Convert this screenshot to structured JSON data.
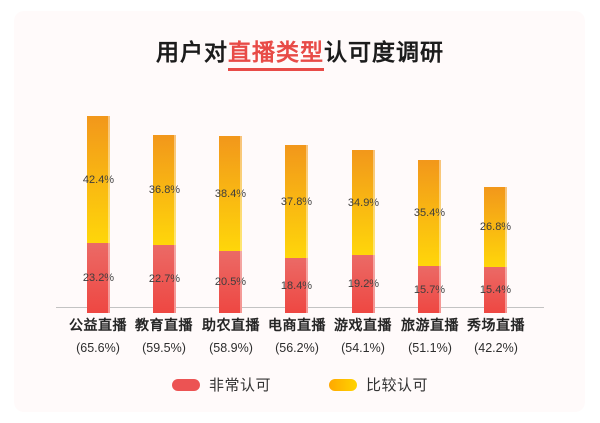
{
  "title": {
    "prefix": "用户对",
    "highlight": "直播类型",
    "suffix": "认可度调研",
    "highlight_color": "#E84B47"
  },
  "legend": [
    {
      "label": "非常认可",
      "swatch_color": "#EC5353"
    },
    {
      "label": "比较认可",
      "swatch_color_left": "#FFA800",
      "swatch_color_right": "#FFD400"
    }
  ],
  "colors": {
    "approve_strong_top": "#EB6A66",
    "approve_strong_bottom": "#EE4742",
    "approve_somewhat_top": "#F2971B",
    "approve_somewhat_bottom": "#FFD60A",
    "axis_line": "#c3c3c3",
    "card_background": "#FFFAFA"
  },
  "chart_data": {
    "type": "bar",
    "stacked": true,
    "title": "用户对直播类型认可度调研",
    "legend_position": "bottom",
    "grid": false,
    "categories": [
      "公益直播",
      "教育直播",
      "助农直播",
      "电商直播",
      "游戏直播",
      "旅游直播",
      "秀场直播"
    ],
    "category_totals": [
      65.6,
      59.5,
      58.9,
      56.2,
      54.1,
      51.1,
      42.2
    ],
    "series": [
      {
        "name": "非常认可",
        "values": [
          23.2,
          22.7,
          20.5,
          18.4,
          19.2,
          15.7,
          15.4
        ]
      },
      {
        "name": "比较认可",
        "values": [
          42.4,
          36.8,
          38.4,
          37.8,
          34.9,
          35.4,
          26.8
        ]
      }
    ],
    "value_suffix": "%"
  }
}
